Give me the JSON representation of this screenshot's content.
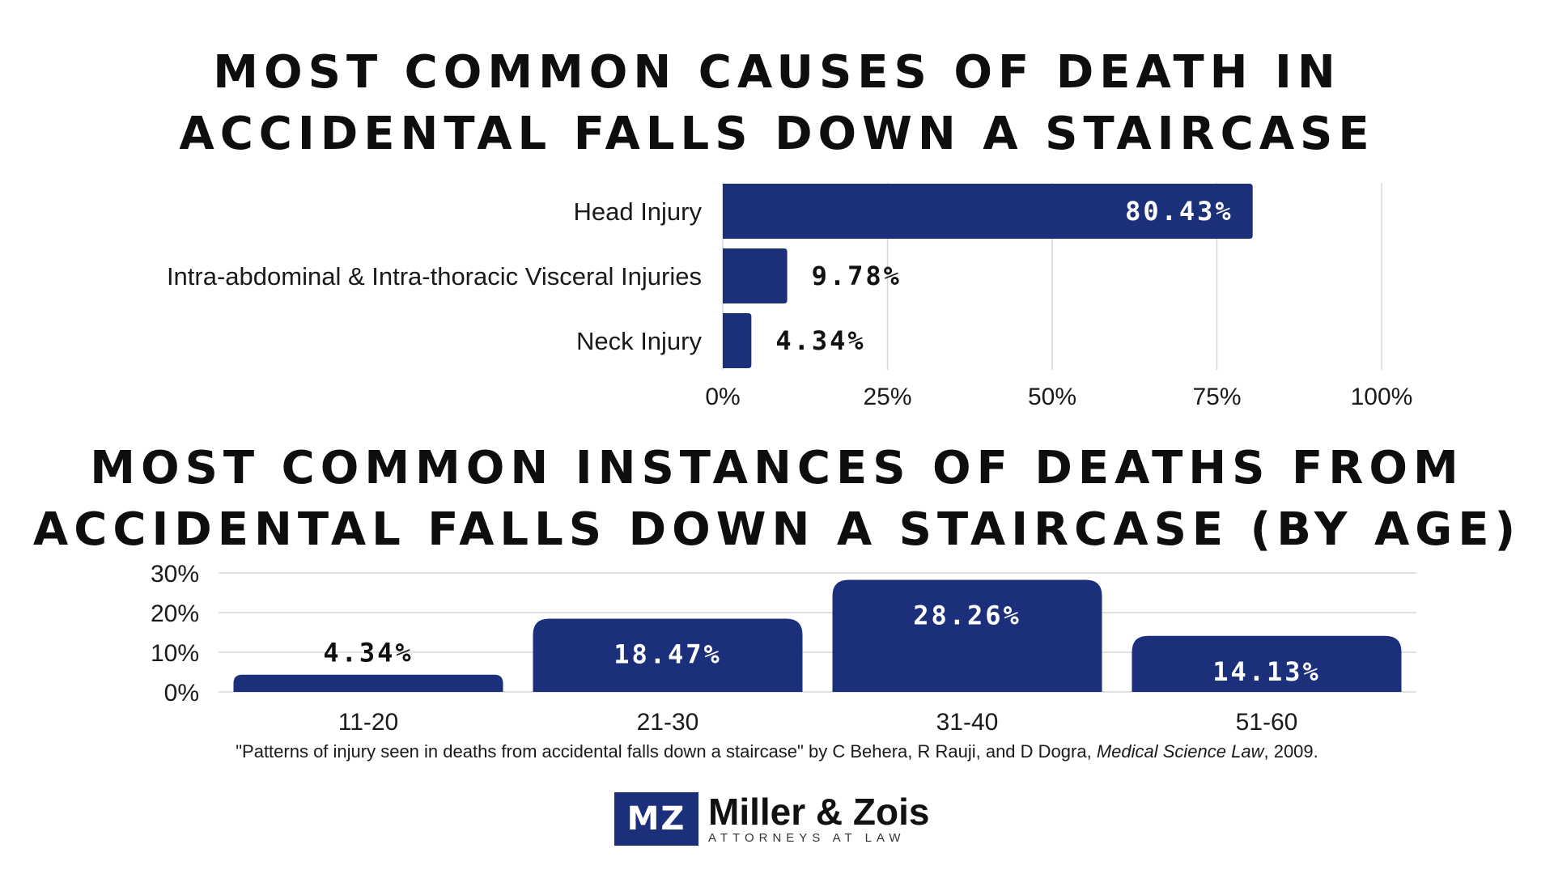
{
  "chart_data": [
    {
      "type": "bar",
      "orientation": "horizontal",
      "title": "MOST COMMON CAUSES OF DEATH IN ACCIDENTAL FALLS DOWN A STAIRCASE",
      "title_lines": [
        "MOST COMMON CAUSES OF DEATH IN",
        "ACCIDENTAL FALLS DOWN A STAIRCASE"
      ],
      "categories": [
        "Head Injury",
        "Intra-abdominal & Intra-thoracic Visceral Injuries",
        "Neck Injury"
      ],
      "values": [
        80.43,
        9.78,
        4.34
      ],
      "value_labels": [
        "80.43%",
        "9.78%",
        "4.34%"
      ],
      "xlim": [
        0,
        100
      ],
      "x_ticks": [
        "0%",
        "25%",
        "50%",
        "75%",
        "100%"
      ],
      "x_tick_values": [
        0,
        25,
        50,
        75,
        100
      ],
      "grid": true,
      "bar_color": "#1b2f7b"
    },
    {
      "type": "bar",
      "orientation": "vertical",
      "title": "MOST COMMON INSTANCES OF DEATHS FROM ACCIDENTAL FALLS DOWN A STAIRCASE (BY AGE)",
      "title_lines": [
        "MOST COMMON INSTANCES OF DEATHS FROM",
        "ACCIDENTAL FALLS DOWN A STAIRCASE (BY AGE)"
      ],
      "categories": [
        "11-20",
        "21-30",
        "31-40",
        "51-60"
      ],
      "values": [
        4.34,
        18.47,
        28.26,
        14.13
      ],
      "value_labels": [
        "4.34%",
        "18.47%",
        "28.26%",
        "14.13%"
      ],
      "ylim": [
        0,
        30
      ],
      "y_ticks": [
        "0%",
        "10%",
        "20%",
        "30%"
      ],
      "y_tick_values": [
        0,
        10,
        20,
        30
      ],
      "grid": true,
      "bar_color": "#1b2f7b"
    }
  ],
  "citation": {
    "prefix": "\"Patterns of  injury seen in deaths from accidental falls down a staircase\" by C Behera, R Rauji, and D Dogra, ",
    "journal": "Medical Science Law",
    "suffix": ", 2009."
  },
  "logo": {
    "mark": "MZ",
    "name": "Miller & Zois",
    "tagline": "ATTORNEYS AT LAW"
  }
}
